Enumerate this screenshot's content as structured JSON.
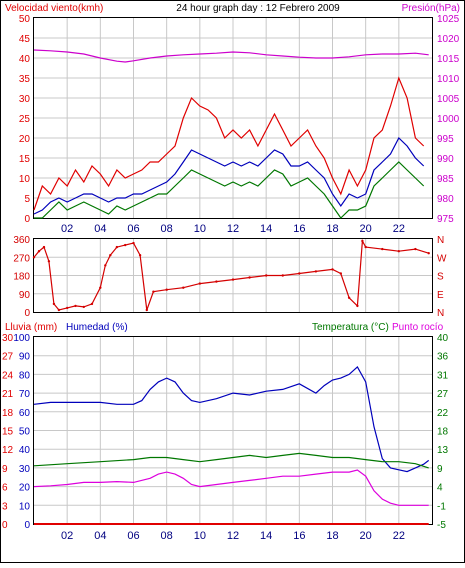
{
  "header": {
    "title": "24 hour graph day : 12 Febrero 2009"
  },
  "colors": {
    "frame": "#000000",
    "grid": "#c8c8c8",
    "background": "#ffffff",
    "wind": "#e00000",
    "wind_dir": "#d40000",
    "pressure": "#cc00cc",
    "humidity": "#0000bb",
    "temperature": "#007700",
    "dewpoint": "#dd00dd",
    "rain": "#e00000",
    "x_ticks": "#000080"
  },
  "x_ticks": [
    "02",
    "04",
    "06",
    "08",
    "10",
    "12",
    "14",
    "16",
    "18",
    "20",
    "22"
  ],
  "chart_data": [
    {
      "type": "line",
      "title": "24 hour graph day : 12 Febrero 2009",
      "ylabel": "Velocidad viento(kmh)",
      "ylabel_right": "Presión(hPa)",
      "xlim": [
        0,
        24
      ],
      "ylim": [
        0,
        50
      ],
      "ylim_right": [
        975,
        1025
      ],
      "yticks_left": [
        "50",
        "45",
        "40",
        "35",
        "30",
        "25",
        "20",
        "15",
        "10",
        "5",
        "0"
      ],
      "yticks_right": [
        "1025",
        "1020",
        "1015",
        "1010",
        "1005",
        "1000",
        "995",
        "990",
        "985",
        "980",
        "975"
      ],
      "series": [
        {
          "key": "gust",
          "axis": "left",
          "x": [
            0,
            0.5,
            1,
            1.5,
            2,
            2.5,
            3,
            3.5,
            4,
            4.5,
            5,
            5.5,
            6,
            6.5,
            7,
            7.5,
            8,
            8.5,
            9,
            9.5,
            10,
            10.5,
            11,
            11.5,
            12,
            12.5,
            13,
            13.5,
            14,
            14.5,
            15,
            15.5,
            16,
            16.5,
            17,
            17.5,
            18,
            18.5,
            19,
            19.5,
            20,
            20.5,
            21,
            21.5,
            22,
            22.5,
            23,
            23.5
          ],
          "values": [
            2,
            8,
            6,
            10,
            8,
            12,
            9,
            13,
            11,
            8,
            12,
            10,
            11,
            12,
            14,
            14,
            16,
            18,
            25,
            30,
            28,
            27,
            25,
            20,
            22,
            20,
            22,
            18,
            22,
            26,
            22,
            18,
            20,
            22,
            18,
            15,
            10,
            6,
            12,
            8,
            12,
            20,
            22,
            28,
            35,
            30,
            20,
            18
          ]
        },
        {
          "key": "wind_avg",
          "axis": "left",
          "x": [
            0,
            0.5,
            1,
            1.5,
            2,
            2.5,
            3,
            3.5,
            4,
            4.5,
            5,
            5.5,
            6,
            6.5,
            7,
            7.5,
            8,
            8.5,
            9,
            9.5,
            10,
            10.5,
            11,
            11.5,
            12,
            12.5,
            13,
            13.5,
            14,
            14.5,
            15,
            15.5,
            16,
            16.5,
            17,
            17.5,
            18,
            18.5,
            19,
            19.5,
            20,
            20.5,
            21,
            21.5,
            22,
            22.5,
            23,
            23.5
          ],
          "values": [
            1,
            2,
            4,
            5,
            4,
            5,
            6,
            6,
            5,
            4,
            5,
            5,
            6,
            6,
            7,
            8,
            9,
            11,
            14,
            17,
            16,
            15,
            14,
            13,
            14,
            13,
            14,
            13,
            15,
            17,
            16,
            13,
            13,
            14,
            12,
            10,
            6,
            3,
            6,
            5,
            6,
            12,
            14,
            16,
            20,
            18,
            15,
            13
          ]
        },
        {
          "key": "wind_min",
          "axis": "left",
          "x": [
            0,
            0.5,
            1,
            1.5,
            2,
            2.5,
            3,
            3.5,
            4,
            4.5,
            5,
            5.5,
            6,
            6.5,
            7,
            7.5,
            8,
            8.5,
            9,
            9.5,
            10,
            10.5,
            11,
            11.5,
            12,
            12.5,
            13,
            13.5,
            14,
            14.5,
            15,
            15.5,
            16,
            16.5,
            17,
            17.5,
            18,
            18.5,
            19,
            19.5,
            20,
            20.5,
            21,
            21.5,
            22,
            22.5,
            23,
            23.5
          ],
          "values": [
            0,
            0,
            2,
            4,
            2,
            3,
            4,
            3,
            2,
            1,
            3,
            2,
            3,
            4,
            5,
            6,
            6,
            8,
            10,
            12,
            11,
            10,
            9,
            8,
            9,
            8,
            9,
            8,
            10,
            12,
            11,
            8,
            9,
            10,
            8,
            6,
            3,
            0,
            2,
            2,
            3,
            8,
            10,
            12,
            14,
            12,
            10,
            8
          ]
        },
        {
          "key": "pressure",
          "axis": "right",
          "x": [
            0,
            1,
            2,
            3,
            4,
            5,
            5.5,
            6,
            7,
            8,
            9,
            10,
            11,
            12,
            13,
            14,
            15,
            16,
            17,
            18,
            19,
            20,
            21,
            22,
            23,
            23.8
          ],
          "values": [
            1017,
            1016.8,
            1016.5,
            1016,
            1015,
            1014.2,
            1014,
            1014.3,
            1015,
            1015.5,
            1015.8,
            1016,
            1016.2,
            1016.5,
            1016.3,
            1015.8,
            1015.5,
            1015.2,
            1015,
            1015,
            1015.3,
            1015.8,
            1016,
            1016,
            1016.2,
            1015.8
          ]
        }
      ]
    },
    {
      "type": "scatter",
      "title": "",
      "xlim": [
        0,
        24
      ],
      "ylim": [
        0,
        360
      ],
      "yticks_left": [
        "360",
        "270",
        "180",
        "90",
        "0"
      ],
      "yticks_right": [
        "N",
        "W",
        "S",
        "E",
        "N"
      ],
      "series": [
        {
          "key": "wind_dir",
          "axis": "left",
          "x": [
            0,
            0.3,
            0.6,
            0.9,
            1.2,
            1.5,
            2,
            2.5,
            3,
            3.5,
            4,
            4.3,
            4.6,
            5,
            5.5,
            6,
            6.4,
            6.8,
            7.2,
            8,
            9,
            10,
            11,
            12,
            13,
            14,
            15,
            16,
            17,
            18,
            18.5,
            19,
            19.5,
            19.8,
            20,
            21,
            22,
            23,
            23.8
          ],
          "values": [
            270,
            300,
            320,
            250,
            40,
            10,
            20,
            30,
            25,
            40,
            120,
            230,
            280,
            320,
            330,
            340,
            280,
            10,
            100,
            110,
            120,
            140,
            150,
            160,
            170,
            180,
            180,
            190,
            200,
            210,
            190,
            70,
            30,
            350,
            320,
            310,
            300,
            310,
            290
          ]
        }
      ]
    },
    {
      "type": "line",
      "title": "",
      "ylabel": "Lluvia (mm)  Humedad (%)",
      "ylabel_right": "Temperatura (°C)Punto rocío",
      "xlim": [
        0,
        24
      ],
      "ylim": [
        0,
        100
      ],
      "ylim_right": [
        -5,
        40
      ],
      "yticks_left": [
        "100",
        "90",
        "80",
        "70",
        "60",
        "50",
        "40",
        "30",
        "20",
        "10",
        "0"
      ],
      "yticks_rain": [
        "30",
        "27",
        "24",
        "21",
        "18",
        "15",
        "12",
        "9",
        "6",
        "3",
        "0"
      ],
      "yticks_right": [
        "40",
        "36",
        "31",
        "27",
        "22",
        "18",
        "13",
        "9",
        "4",
        "-1",
        "-5"
      ],
      "series": [
        {
          "key": "humidity",
          "axis": "left",
          "x": [
            0,
            1,
            2,
            3,
            4,
            5,
            6,
            6.5,
            7,
            7.5,
            8,
            8.5,
            9,
            9.5,
            10,
            11,
            12,
            13,
            14,
            15,
            16,
            17,
            17.5,
            18,
            18.5,
            19,
            19.5,
            20,
            20.5,
            21,
            21.5,
            22,
            22.5,
            23,
            23.5,
            23.8
          ],
          "values": [
            64,
            65,
            65,
            65,
            65,
            64,
            64,
            66,
            72,
            76,
            78,
            76,
            70,
            66,
            65,
            67,
            70,
            69,
            71,
            72,
            75,
            70,
            74,
            77,
            78,
            80,
            84,
            76,
            52,
            35,
            30,
            29,
            28,
            30,
            32,
            34
          ]
        },
        {
          "key": "temperature",
          "axis": "right",
          "x": [
            0,
            2,
            4,
            6,
            7,
            8,
            9,
            10,
            11,
            12,
            13,
            14,
            15,
            16,
            17,
            18,
            19,
            20,
            21,
            22,
            23,
            23.8
          ],
          "values": [
            9,
            9.5,
            10,
            10.5,
            11,
            11,
            10.5,
            10,
            10.5,
            11,
            11.5,
            11,
            11.5,
            12,
            11.5,
            11,
            11,
            10.5,
            10,
            10,
            9.5,
            8.5
          ]
        },
        {
          "key": "dewpoint",
          "axis": "right",
          "x": [
            0,
            1,
            2,
            3,
            4,
            5,
            6,
            7,
            7.5,
            8,
            8.5,
            9,
            9.5,
            10,
            11,
            12,
            13,
            14,
            15,
            16,
            17,
            18,
            19,
            19.5,
            20,
            20.5,
            21,
            21.5,
            22,
            23,
            23.8
          ],
          "values": [
            4,
            4.2,
            4.5,
            5,
            5,
            5.2,
            5,
            6,
            7,
            7.5,
            7,
            6,
            4.5,
            4,
            4.5,
            5,
            5.5,
            6,
            6.5,
            6.5,
            7,
            7.5,
            7.5,
            8,
            6.5,
            3,
            1,
            0,
            -0.5,
            -0.5,
            -0.5
          ]
        },
        {
          "key": "rain",
          "axis": "left",
          "x": [
            0,
            23.8
          ],
          "values": [
            0,
            0
          ]
        }
      ]
    }
  ]
}
